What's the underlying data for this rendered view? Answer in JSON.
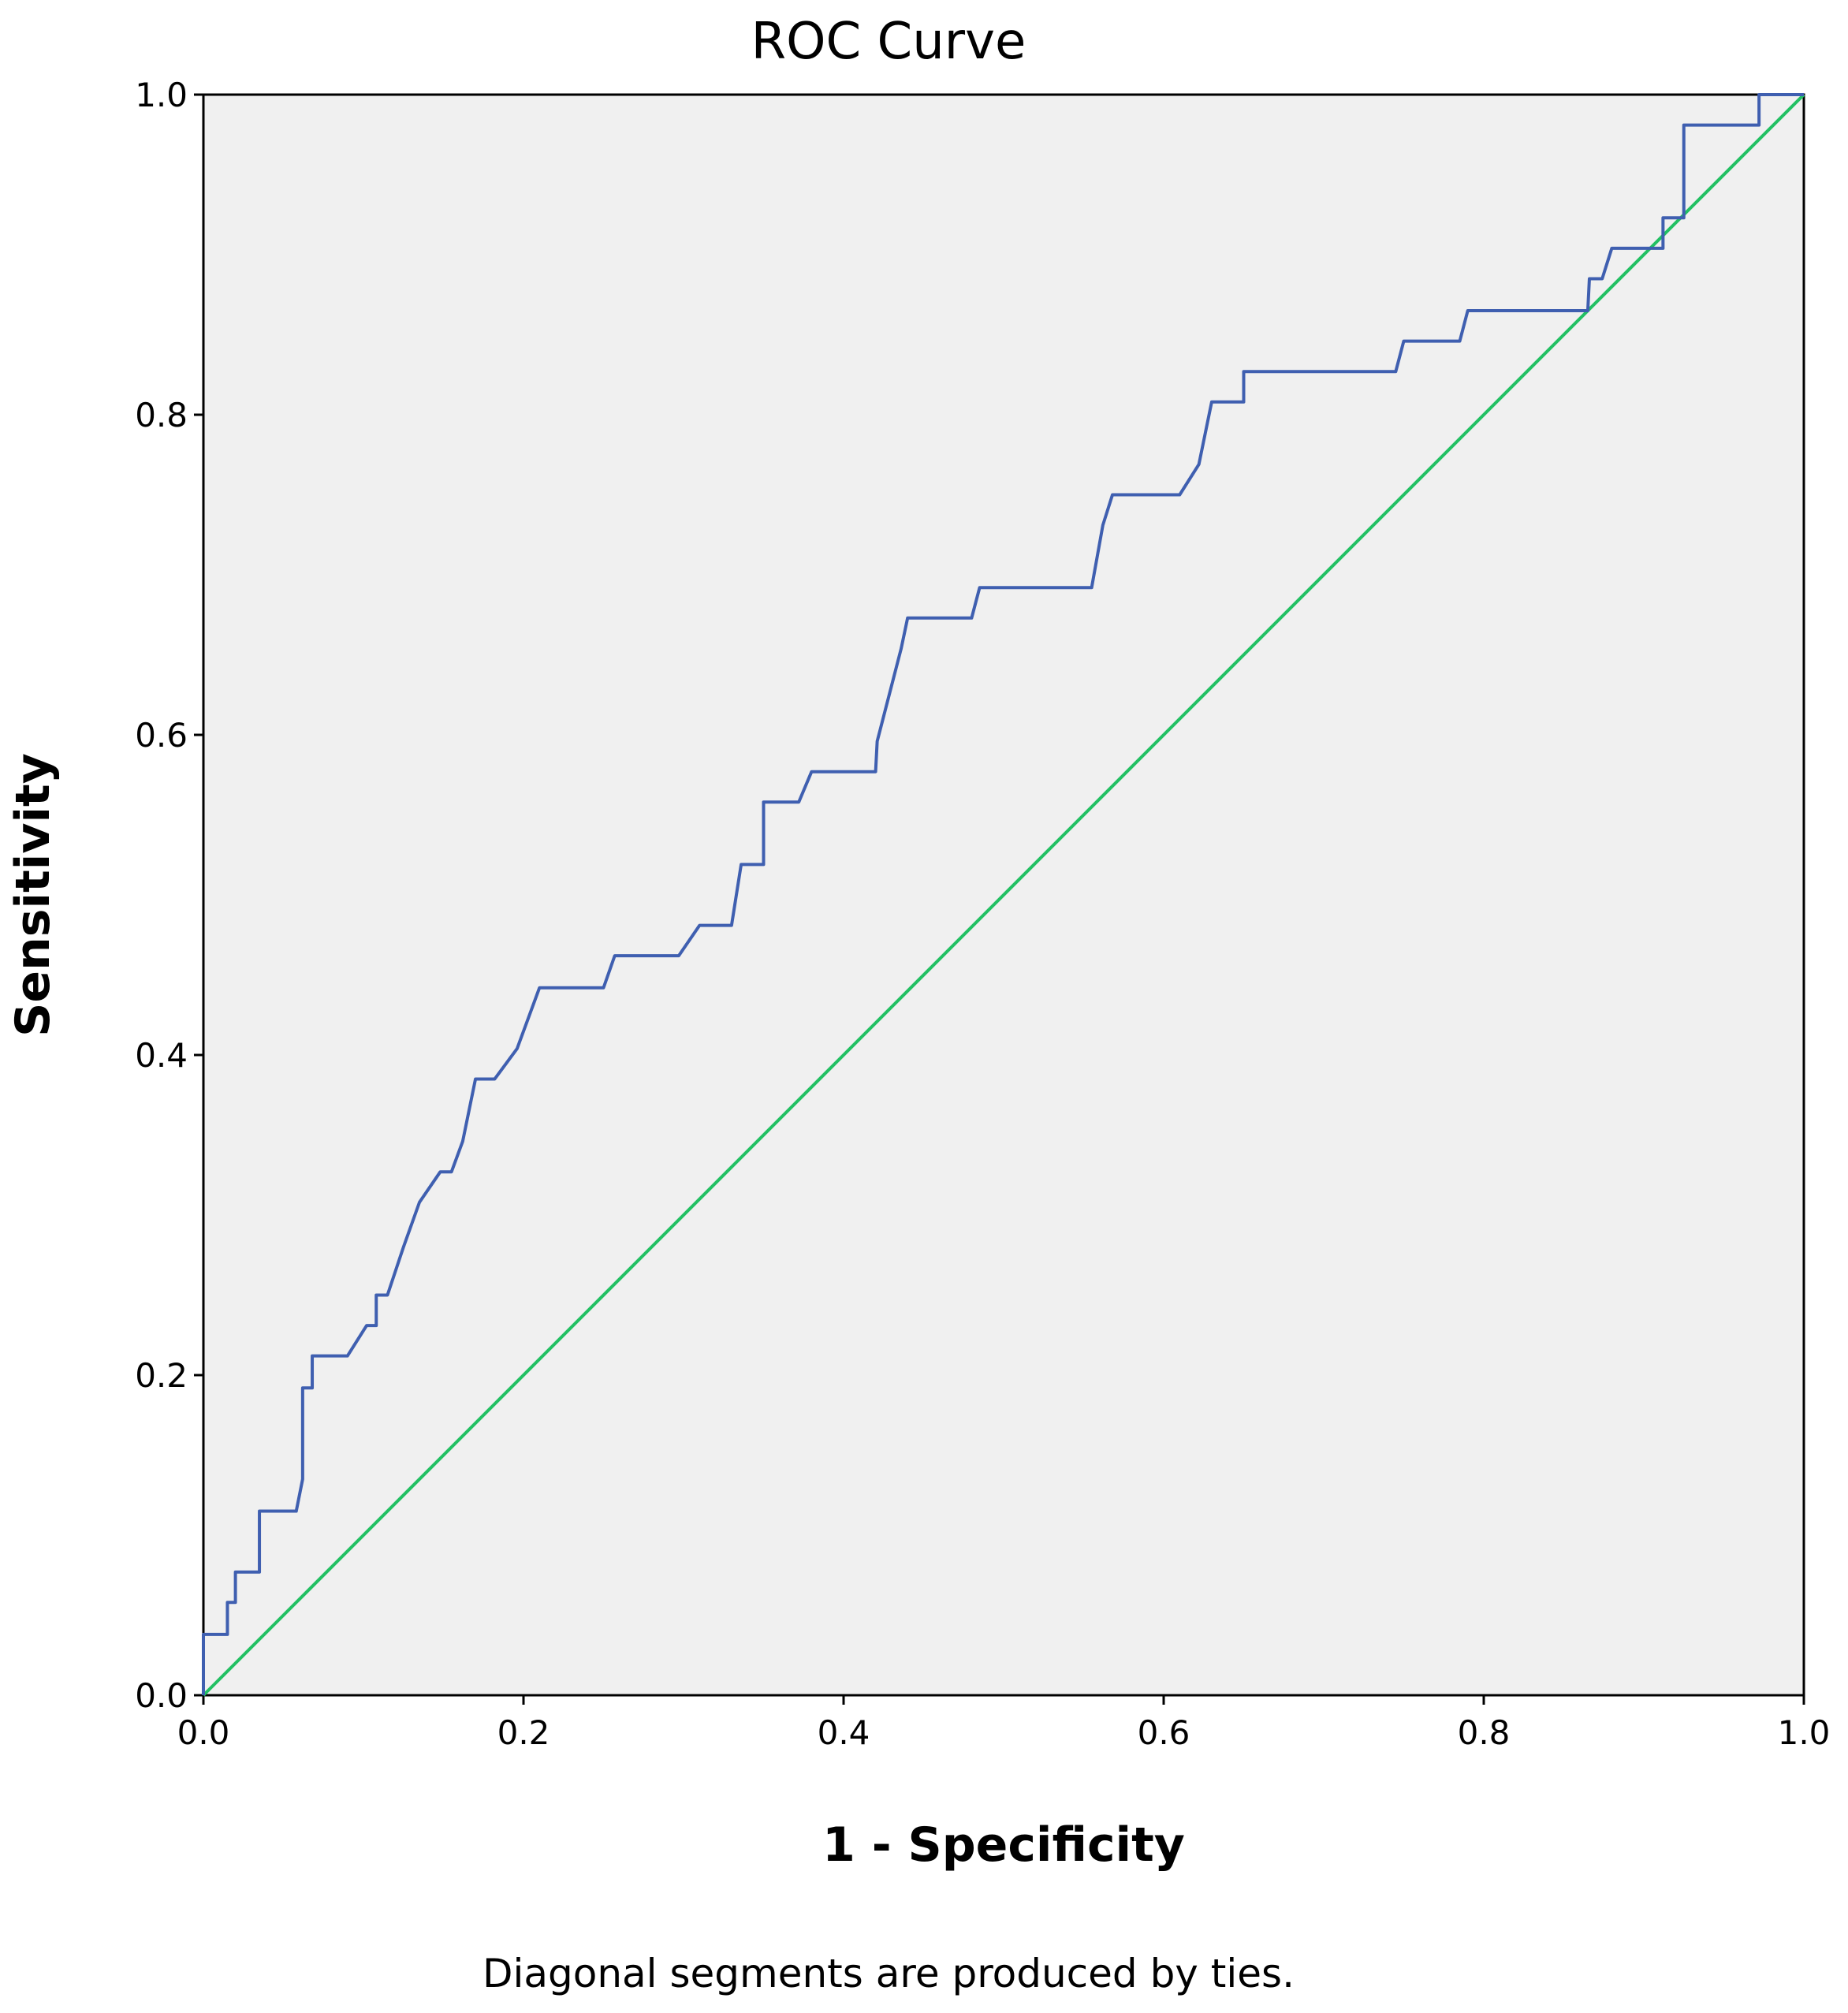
{
  "chart_data": {
    "type": "line",
    "title": "ROC Curve",
    "xlabel": "1 - Specificity",
    "ylabel": "Sensitivity",
    "xlim": [
      0,
      1
    ],
    "ylim": [
      0,
      1
    ],
    "x_ticks": [
      "0.0",
      "0.2",
      "0.4",
      "0.6",
      "0.8",
      "1.0"
    ],
    "y_ticks": [
      "0.0",
      "0.2",
      "0.4",
      "0.6",
      "0.8",
      "1.0"
    ],
    "grid": false,
    "footnote": "Diagonal segments are produced by ties.",
    "colors": {
      "plot_background": "#f0f0f0",
      "roc": "#3f5fb0",
      "reference": "#22c063"
    },
    "series": [
      {
        "points": [
          [
            0.0,
            0.0
          ],
          [
            0.0,
            0.038
          ],
          [
            0.015,
            0.038
          ],
          [
            0.015,
            0.058
          ],
          [
            0.02,
            0.058
          ],
          [
            0.02,
            0.077
          ],
          [
            0.035,
            0.077
          ],
          [
            0.035,
            0.115
          ],
          [
            0.058,
            0.115
          ],
          [
            0.062,
            0.135
          ],
          [
            0.062,
            0.192
          ],
          [
            0.068,
            0.192
          ],
          [
            0.068,
            0.212
          ],
          [
            0.09,
            0.212
          ],
          [
            0.102,
            0.231
          ],
          [
            0.108,
            0.231
          ],
          [
            0.108,
            0.25
          ],
          [
            0.115,
            0.25
          ],
          [
            0.125,
            0.28
          ],
          [
            0.135,
            0.308
          ],
          [
            0.148,
            0.327
          ],
          [
            0.155,
            0.327
          ],
          [
            0.162,
            0.346
          ],
          [
            0.17,
            0.385
          ],
          [
            0.182,
            0.385
          ],
          [
            0.196,
            0.404
          ],
          [
            0.21,
            0.442
          ],
          [
            0.25,
            0.442
          ],
          [
            0.257,
            0.462
          ],
          [
            0.297,
            0.462
          ],
          [
            0.31,
            0.481
          ],
          [
            0.33,
            0.481
          ],
          [
            0.336,
            0.519
          ],
          [
            0.35,
            0.519
          ],
          [
            0.35,
            0.558
          ],
          [
            0.372,
            0.558
          ],
          [
            0.38,
            0.577
          ],
          [
            0.42,
            0.577
          ],
          [
            0.421,
            0.596
          ],
          [
            0.436,
            0.654
          ],
          [
            0.44,
            0.673
          ],
          [
            0.48,
            0.673
          ],
          [
            0.485,
            0.692
          ],
          [
            0.555,
            0.692
          ],
          [
            0.562,
            0.731
          ],
          [
            0.568,
            0.75
          ],
          [
            0.61,
            0.75
          ],
          [
            0.622,
            0.769
          ],
          [
            0.63,
            0.808
          ],
          [
            0.65,
            0.808
          ],
          [
            0.65,
            0.827
          ],
          [
            0.745,
            0.827
          ],
          [
            0.75,
            0.846
          ],
          [
            0.785,
            0.846
          ],
          [
            0.79,
            0.865
          ],
          [
            0.865,
            0.865
          ],
          [
            0.866,
            0.885
          ],
          [
            0.874,
            0.885
          ],
          [
            0.88,
            0.904
          ],
          [
            0.912,
            0.904
          ],
          [
            0.912,
            0.923
          ],
          [
            0.925,
            0.923
          ],
          [
            0.925,
            0.981
          ],
          [
            0.972,
            0.981
          ],
          [
            0.972,
            1.0
          ],
          [
            1.0,
            1.0
          ]
        ]
      },
      {
        "points": [
          [
            0,
            0
          ],
          [
            1,
            1
          ]
        ]
      }
    ]
  }
}
